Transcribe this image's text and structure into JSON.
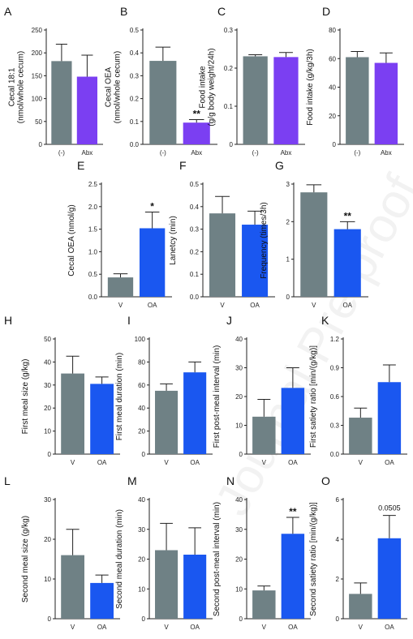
{
  "colors": {
    "gray": "#6f8185",
    "purple": "#7b3ff2",
    "blue": "#1a57f0"
  },
  "watermark": "Journal Pre-proof",
  "chart_data": [
    {
      "id": "A",
      "type": "bar",
      "panel": "A",
      "ylabel_lines": [
        "Cecal 18:1",
        "(nmol/whole cecum)"
      ],
      "categories": [
        "(-)",
        "Abx"
      ],
      "values": [
        182,
        148
      ],
      "errors": [
        37,
        47
      ],
      "colors": [
        "gray",
        "purple"
      ],
      "ylim": [
        0,
        250
      ],
      "yticks": [
        "0",
        "50",
        "100",
        "150",
        "200",
        "250"
      ],
      "annotations": [
        "",
        ""
      ]
    },
    {
      "id": "B",
      "type": "bar",
      "panel": "B",
      "ylabel_lines": [
        "Cecal OEA",
        "(nmol/whole cecum)"
      ],
      "categories": [
        "(-)",
        "Abx"
      ],
      "values": [
        0.365,
        0.095
      ],
      "errors": [
        0.06,
        0.013
      ],
      "colors": [
        "gray",
        "purple"
      ],
      "ylim": [
        0,
        0.5
      ],
      "yticks": [
        "0.0",
        "0.1",
        "0.2",
        "0.3",
        "0.4",
        "0.5"
      ],
      "annotations": [
        "",
        "**"
      ]
    },
    {
      "id": "C",
      "type": "bar",
      "panel": "C",
      "ylabel_lines": [
        "Food intake",
        "(g/g body weight/24h)"
      ],
      "categories": [
        "(-)",
        "Abx"
      ],
      "values": [
        0.231,
        0.229
      ],
      "errors": [
        0.004,
        0.012
      ],
      "colors": [
        "gray",
        "purple"
      ],
      "ylim": [
        0,
        0.3
      ],
      "yticks": [
        "0",
        "0.1",
        "0.2",
        "0.3"
      ],
      "annotations": [
        "",
        ""
      ]
    },
    {
      "id": "D",
      "type": "bar",
      "panel": "D",
      "ylabel_lines": [
        "Food intake (g/kg/3h)"
      ],
      "categories": [
        "(-)",
        "Abx"
      ],
      "values": [
        61,
        57
      ],
      "errors": [
        4,
        7
      ],
      "colors": [
        "gray",
        "purple"
      ],
      "ylim": [
        0,
        80
      ],
      "yticks": [
        "0",
        "20",
        "40",
        "60",
        "80"
      ],
      "annotations": [
        "",
        ""
      ]
    },
    {
      "id": "E",
      "type": "bar",
      "panel": "E",
      "ylabel_lines": [
        "Cecal OEA (nmol/g)"
      ],
      "categories": [
        "V",
        "OA"
      ],
      "values": [
        0.43,
        1.52
      ],
      "errors": [
        0.08,
        0.36
      ],
      "colors": [
        "gray",
        "blue"
      ],
      "ylim": [
        0,
        2.5
      ],
      "yticks": [
        "0.0",
        "0.5",
        "1.0",
        "1.5",
        "2.0",
        "2.5"
      ],
      "annotations": [
        "",
        "*"
      ]
    },
    {
      "id": "F",
      "type": "bar",
      "panel": "F",
      "ylabel_lines": [
        "Lanetcy (min)"
      ],
      "categories": [
        "V",
        "OA"
      ],
      "values": [
        0.37,
        0.32
      ],
      "errors": [
        0.075,
        0.06
      ],
      "colors": [
        "gray",
        "blue"
      ],
      "ylim": [
        0,
        0.5
      ],
      "yticks": [
        "0.0",
        "0.1",
        "0.2",
        "0.3",
        "0.4",
        "0.5"
      ],
      "annotations": [
        "",
        ""
      ]
    },
    {
      "id": "G",
      "type": "bar",
      "panel": "G",
      "ylabel_lines": [
        "Frequency (times/3h)"
      ],
      "categories": [
        "V",
        "OA"
      ],
      "values": [
        2.78,
        1.8
      ],
      "errors": [
        0.2,
        0.2
      ],
      "colors": [
        "gray",
        "blue"
      ],
      "ylim": [
        0,
        3
      ],
      "yticks": [
        "0",
        "1",
        "2",
        "3"
      ],
      "annotations": [
        "",
        "**"
      ]
    },
    {
      "id": "H",
      "type": "bar",
      "panel": "H",
      "ylabel_lines": [
        "First meal size (g/kg)"
      ],
      "categories": [
        "V",
        "OA"
      ],
      "values": [
        35,
        30.5
      ],
      "errors": [
        7.5,
        3
      ],
      "colors": [
        "gray",
        "blue"
      ],
      "ylim": [
        0,
        50
      ],
      "yticks": [
        "0",
        "10",
        "20",
        "30",
        "40",
        "50"
      ],
      "annotations": [
        "",
        ""
      ]
    },
    {
      "id": "I",
      "type": "bar",
      "panel": "I",
      "ylabel_lines": [
        "First meal duration (min)"
      ],
      "categories": [
        "V",
        "OA"
      ],
      "values": [
        55,
        71
      ],
      "errors": [
        6,
        9
      ],
      "colors": [
        "gray",
        "blue"
      ],
      "ylim": [
        0,
        100
      ],
      "yticks": [
        "0",
        "20",
        "40",
        "60",
        "80",
        "100"
      ],
      "annotations": [
        "",
        ""
      ]
    },
    {
      "id": "J",
      "type": "bar",
      "panel": "J",
      "ylabel_lines": [
        "First post-meal interval (min)"
      ],
      "categories": [
        "V",
        "OA"
      ],
      "values": [
        13,
        23
      ],
      "errors": [
        6,
        7
      ],
      "colors": [
        "gray",
        "blue"
      ],
      "ylim": [
        0,
        40
      ],
      "yticks": [
        "0",
        "10",
        "20",
        "30",
        "40"
      ],
      "annotations": [
        "",
        ""
      ]
    },
    {
      "id": "K",
      "type": "bar",
      "panel": "K",
      "ylabel_lines": [
        "First satiety ratio [min/(g/kg)]"
      ],
      "categories": [
        "V",
        "OA"
      ],
      "values": [
        0.38,
        0.75
      ],
      "errors": [
        0.1,
        0.18
      ],
      "colors": [
        "gray",
        "blue"
      ],
      "ylim": [
        0,
        1.2
      ],
      "yticks": [
        "0.0",
        "0.3",
        "0.6",
        "0.9",
        "1.2"
      ],
      "annotations": [
        "",
        ""
      ]
    },
    {
      "id": "L",
      "type": "bar",
      "panel": "L",
      "ylabel_lines": [
        "Second meal size (g/kg)"
      ],
      "categories": [
        "V",
        "OA"
      ],
      "values": [
        16,
        9
      ],
      "errors": [
        6.5,
        2
      ],
      "colors": [
        "gray",
        "blue"
      ],
      "ylim": [
        0,
        30
      ],
      "yticks": [
        "0",
        "10",
        "20",
        "30"
      ],
      "annotations": [
        "",
        ""
      ]
    },
    {
      "id": "M",
      "type": "bar",
      "panel": "M",
      "ylabel_lines": [
        "Second meal duration (min)"
      ],
      "categories": [
        "V",
        "OA"
      ],
      "values": [
        23,
        21.5
      ],
      "errors": [
        9,
        9
      ],
      "colors": [
        "gray",
        "blue"
      ],
      "ylim": [
        0,
        40
      ],
      "yticks": [
        "0",
        "10",
        "20",
        "30",
        "40"
      ],
      "annotations": [
        "",
        ""
      ]
    },
    {
      "id": "N",
      "type": "bar",
      "panel": "N",
      "ylabel_lines": [
        "Second post-meal interval (min)"
      ],
      "categories": [
        "V",
        "OA"
      ],
      "values": [
        9.5,
        28.5
      ],
      "errors": [
        1.5,
        5.5
      ],
      "colors": [
        "gray",
        "blue"
      ],
      "ylim": [
        0,
        40
      ],
      "yticks": [
        "0",
        "10",
        "20",
        "30",
        "40"
      ],
      "annotations": [
        "",
        "**"
      ]
    },
    {
      "id": "O",
      "type": "bar",
      "panel": "O",
      "ylabel_lines": [
        "Second satiety ratio [min/(g/kg)]"
      ],
      "categories": [
        "V",
        "OA"
      ],
      "values": [
        1.25,
        4.05
      ],
      "errors": [
        0.55,
        1.15
      ],
      "colors": [
        "gray",
        "blue"
      ],
      "ylim": [
        0,
        6
      ],
      "yticks": [
        "0",
        "2",
        "4",
        "6"
      ],
      "annotations": [
        "",
        "0.0505"
      ]
    }
  ]
}
